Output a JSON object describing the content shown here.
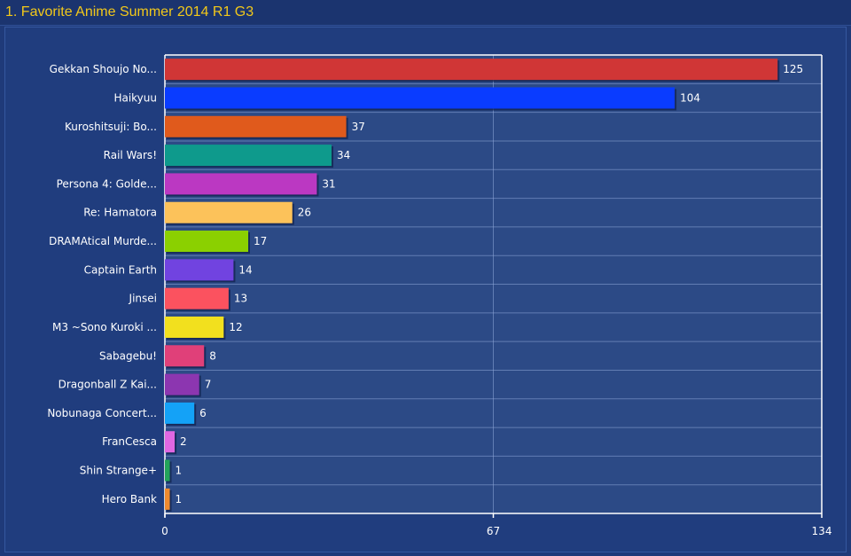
{
  "title": "1. Favorite Anime Summer 2014 R1 G3",
  "chart_data": {
    "type": "bar",
    "orientation": "horizontal",
    "title": "1. Favorite Anime Summer 2014 R1 G3",
    "xlabel": "",
    "ylabel": "",
    "xlim": [
      0,
      134
    ],
    "ticks": [
      "0",
      "67",
      "134"
    ],
    "tick_values": [
      0,
      67,
      134
    ],
    "grid": true,
    "legend": "none",
    "categories": [
      "Gekkan Shoujo No...",
      "Haikyuu",
      "Kuroshitsuji: Bo...",
      "Rail Wars!",
      "Persona 4: Golde...",
      "Re: Hamatora",
      "DRAMAtical Murde...",
      "Captain Earth",
      "Jinsei",
      "M3 ~Sono Kuroki ...",
      "Sabagebu!",
      "Dragonball Z Kai...",
      "Nobunaga Concert...",
      "FranCesca",
      "Shin Strange+",
      "Hero Bank"
    ],
    "values": [
      125,
      104,
      37,
      34,
      31,
      26,
      17,
      14,
      13,
      12,
      8,
      7,
      6,
      2,
      1,
      1
    ],
    "value_labels": [
      "125",
      "104",
      "37",
      "34",
      "31",
      "26",
      "17",
      "14",
      "13",
      "12",
      "8",
      "7",
      "6",
      "2",
      "1",
      "1"
    ],
    "colors": [
      "#d03636",
      "#0a3cff",
      "#e05a1c",
      "#0e9a8c",
      "#bb38c2",
      "#fcc25a",
      "#8bd000",
      "#7143e0",
      "#fb525f",
      "#f2e01e",
      "#e04079",
      "#8c36b0",
      "#14a2f7",
      "#e067e2",
      "#23a35a",
      "#ef8a2e"
    ]
  },
  "style": {
    "plot_bg": "#2c4a86",
    "grid_color": "#8fa7d8",
    "axis_color": "#ffffff",
    "title_color": "#f2c81a"
  }
}
